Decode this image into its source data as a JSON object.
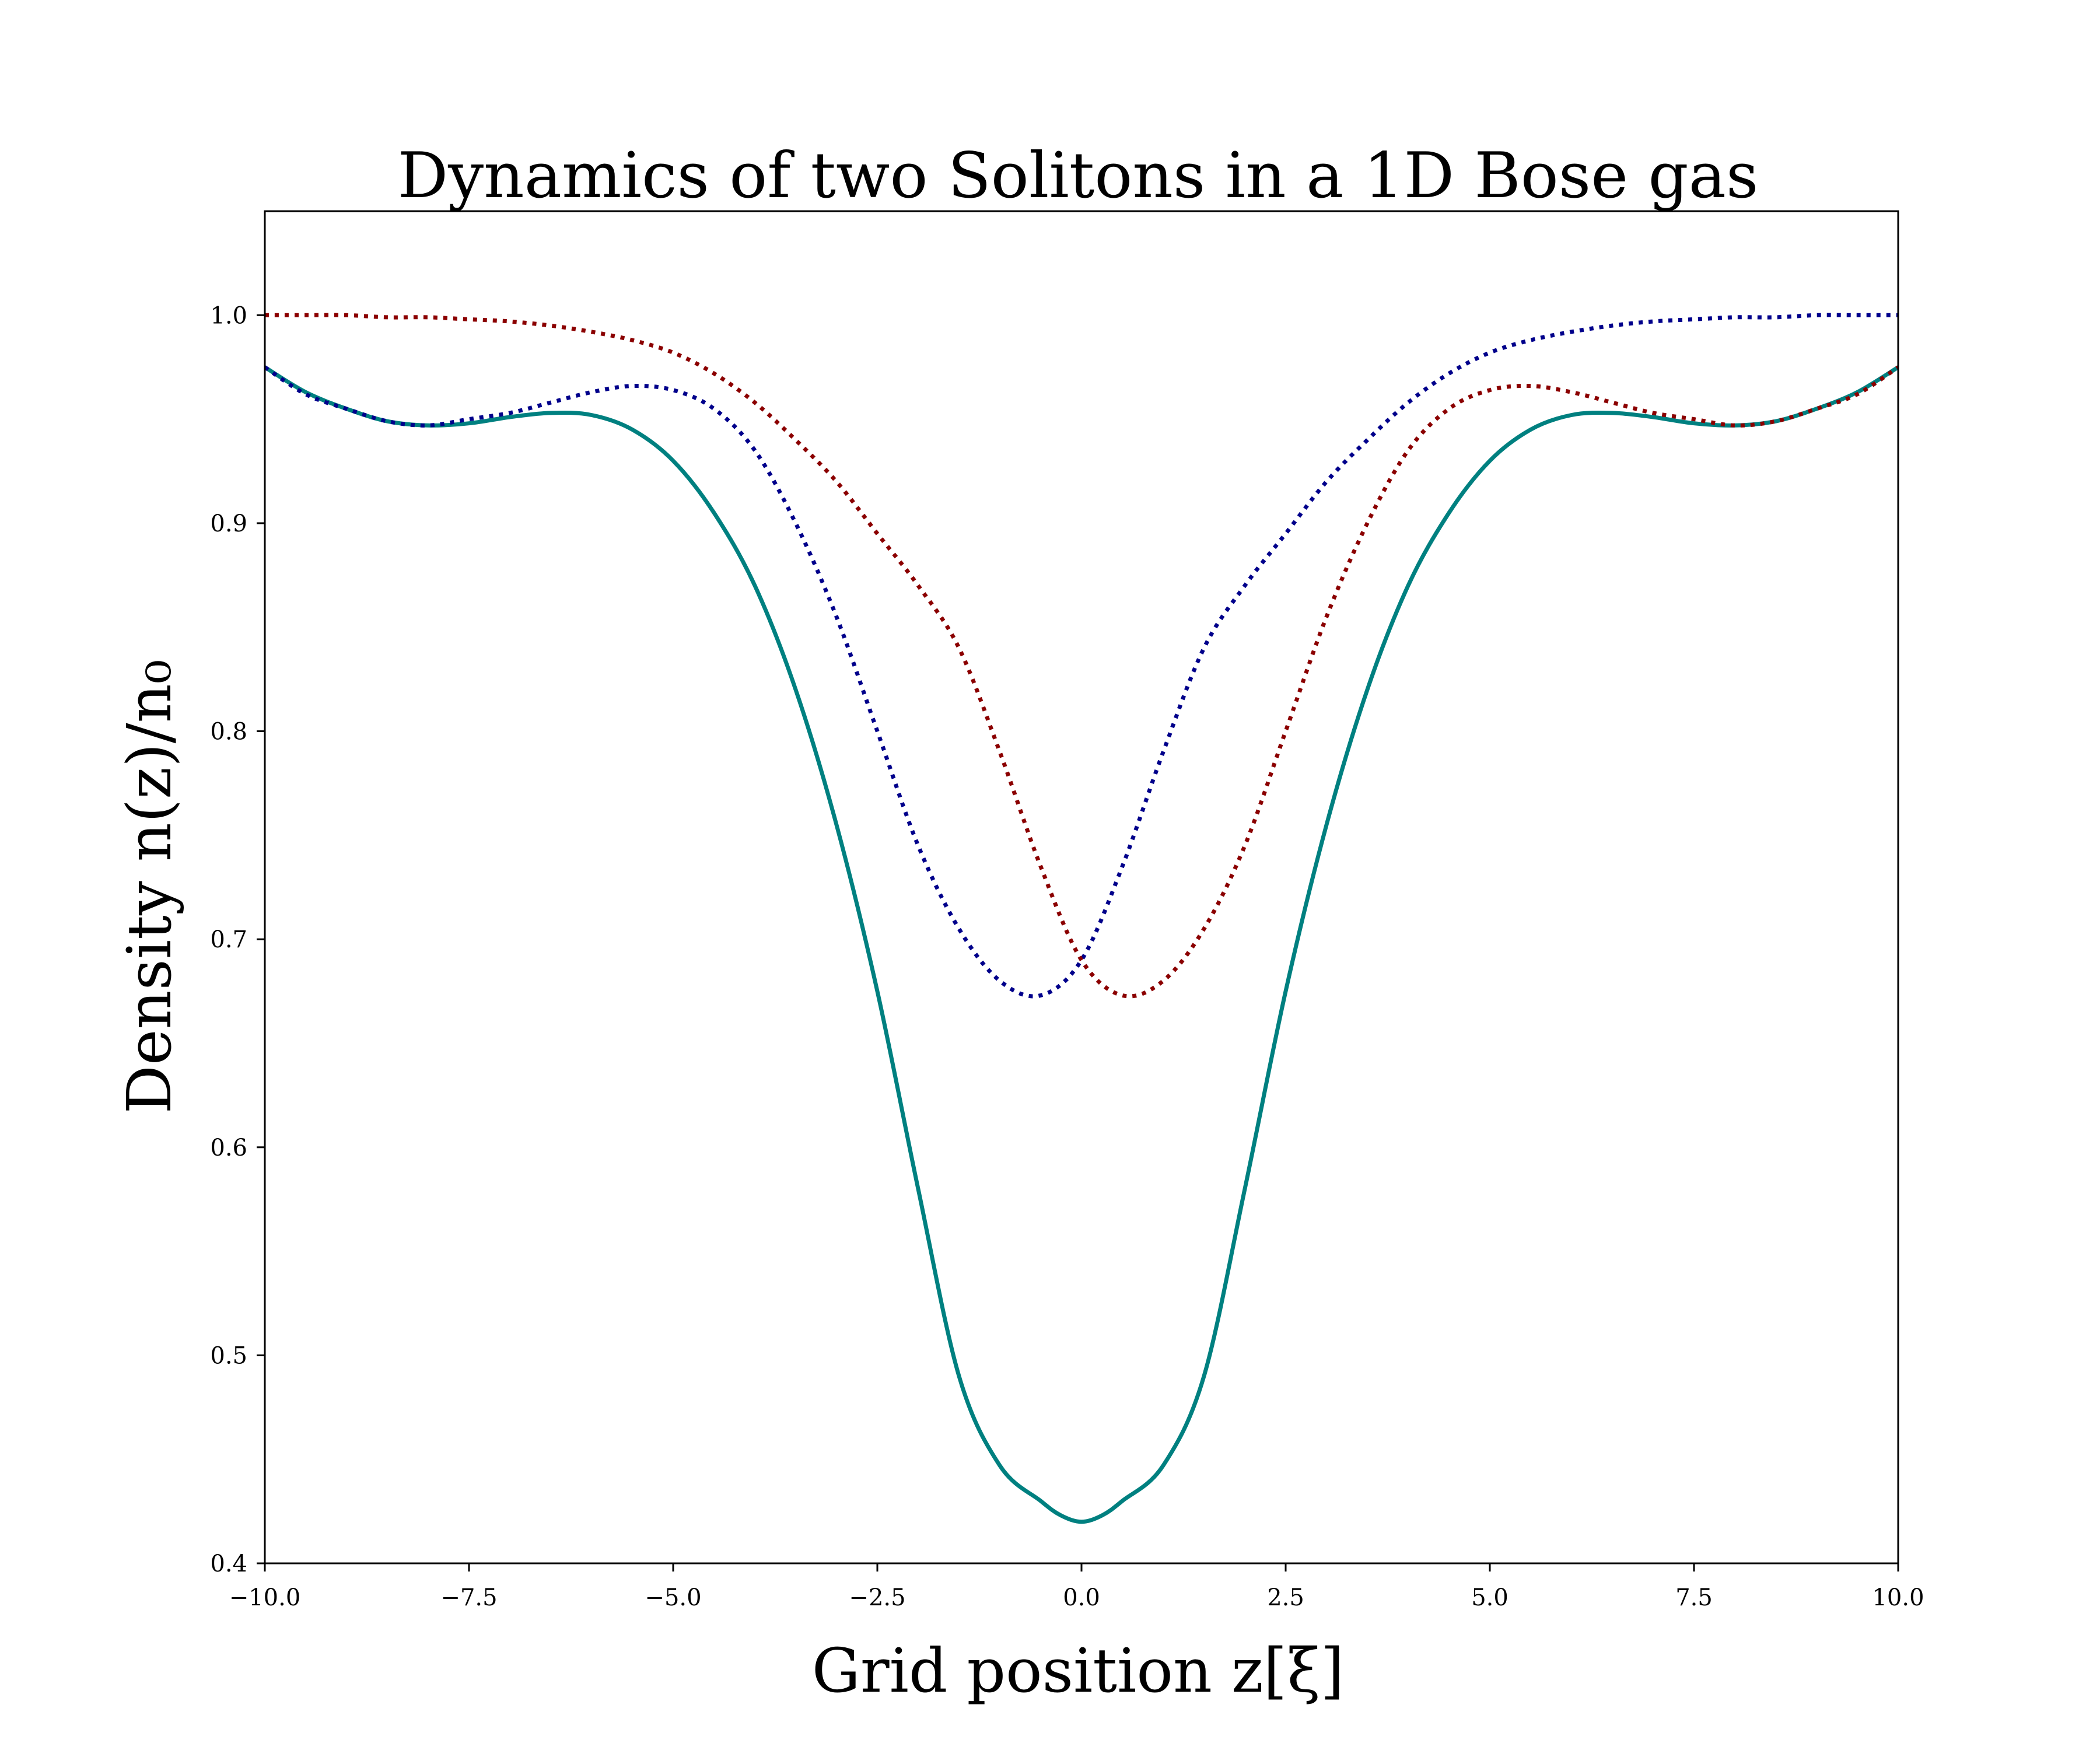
{
  "chart_data": {
    "type": "line",
    "title": "Dynamics of two Solitons in a 1D Bose gas",
    "xlabel": "Grid position z[ξ]",
    "ylabel": "Density n(z)/n₀",
    "xlim": [
      -10,
      10
    ],
    "ylim": [
      0.4,
      1.05
    ],
    "xticks": [
      -10.0,
      -7.5,
      -5.0,
      -2.5,
      0.0,
      2.5,
      5.0,
      7.5,
      10.0
    ],
    "xtick_labels": [
      "−10.0",
      "−7.5",
      "−5.0",
      "−2.5",
      "0.0",
      "2.5",
      "5.0",
      "7.5",
      "10.0"
    ],
    "yticks": [
      0.4,
      0.5,
      0.6,
      0.7,
      0.8,
      0.9,
      1.0
    ],
    "ytick_labels": [
      "0.4",
      "0.5",
      "0.6",
      "0.7",
      "0.8",
      "0.9",
      "1.0"
    ],
    "grid": false,
    "legend": "none",
    "series": [
      {
        "style": "solid",
        "color": "#008080",
        "x": [
          -10,
          -9.5,
          -9,
          -8.5,
          -8,
          -7.5,
          -7,
          -6.5,
          -6,
          -5.5,
          -5,
          -4.5,
          -4,
          -3.5,
          -3,
          -2.5,
          -2,
          -1.5,
          -1,
          -0.5,
          -0.25,
          0,
          0.25,
          0.5,
          1,
          1.5,
          2,
          2.5,
          3,
          3.5,
          4,
          4.5,
          5,
          5.5,
          6,
          6.5,
          7,
          7.5,
          8,
          8.5,
          9,
          9.5,
          10
        ],
        "y": [
          0.975,
          0.963,
          0.955,
          0.949,
          0.947,
          0.948,
          0.951,
          0.953,
          0.952,
          0.945,
          0.93,
          0.905,
          0.87,
          0.82,
          0.755,
          0.675,
          0.58,
          0.49,
          0.447,
          0.43,
          0.423,
          0.42,
          0.423,
          0.43,
          0.447,
          0.49,
          0.58,
          0.675,
          0.755,
          0.82,
          0.87,
          0.905,
          0.93,
          0.945,
          0.952,
          0.953,
          0.951,
          0.948,
          0.947,
          0.949,
          0.955,
          0.963,
          0.975
        ]
      },
      {
        "style": "dotted",
        "color": "#00008b",
        "x": [
          -10,
          -9.5,
          -9,
          -8.5,
          -8,
          -7.5,
          -7,
          -6.5,
          -6,
          -5.5,
          -5,
          -4.5,
          -4,
          -3.5,
          -3,
          -2.5,
          -2,
          -1.5,
          -1,
          -0.5,
          0,
          0.5,
          1,
          1.5,
          2,
          2.5,
          3,
          3.5,
          4,
          4.5,
          5,
          5.5,
          6,
          6.5,
          7,
          7.5,
          8,
          8.5,
          9,
          9.5,
          10
        ],
        "y": [
          0.975,
          0.962,
          0.955,
          0.949,
          0.947,
          0.95,
          0.953,
          0.958,
          0.963,
          0.966,
          0.964,
          0.955,
          0.935,
          0.9,
          0.855,
          0.8,
          0.745,
          0.705,
          0.68,
          0.673,
          0.69,
          0.735,
          0.79,
          0.84,
          0.87,
          0.895,
          0.92,
          0.94,
          0.958,
          0.972,
          0.982,
          0.988,
          0.992,
          0.995,
          0.997,
          0.998,
          0.999,
          0.999,
          1.0,
          1.0,
          1.0
        ]
      },
      {
        "style": "dotted",
        "color": "#8b0000",
        "x": [
          -10,
          -9.5,
          -9,
          -8.5,
          -8,
          -7.5,
          -7,
          -6.5,
          -6,
          -5.5,
          -5,
          -4.5,
          -4,
          -3.5,
          -3,
          -2.5,
          -2,
          -1.5,
          -1,
          -0.5,
          0,
          0.5,
          1,
          1.5,
          2,
          2.5,
          3,
          3.5,
          4,
          4.5,
          5,
          5.5,
          6,
          6.5,
          7,
          7.5,
          8,
          8.5,
          9,
          9.5,
          10
        ],
        "y": [
          1.0,
          1.0,
          1.0,
          0.999,
          0.999,
          0.998,
          0.997,
          0.995,
          0.992,
          0.988,
          0.982,
          0.972,
          0.958,
          0.94,
          0.92,
          0.895,
          0.87,
          0.84,
          0.79,
          0.735,
          0.69,
          0.673,
          0.68,
          0.705,
          0.745,
          0.8,
          0.855,
          0.9,
          0.935,
          0.955,
          0.964,
          0.966,
          0.963,
          0.958,
          0.953,
          0.95,
          0.947,
          0.949,
          0.955,
          0.962,
          0.975
        ]
      }
    ]
  }
}
